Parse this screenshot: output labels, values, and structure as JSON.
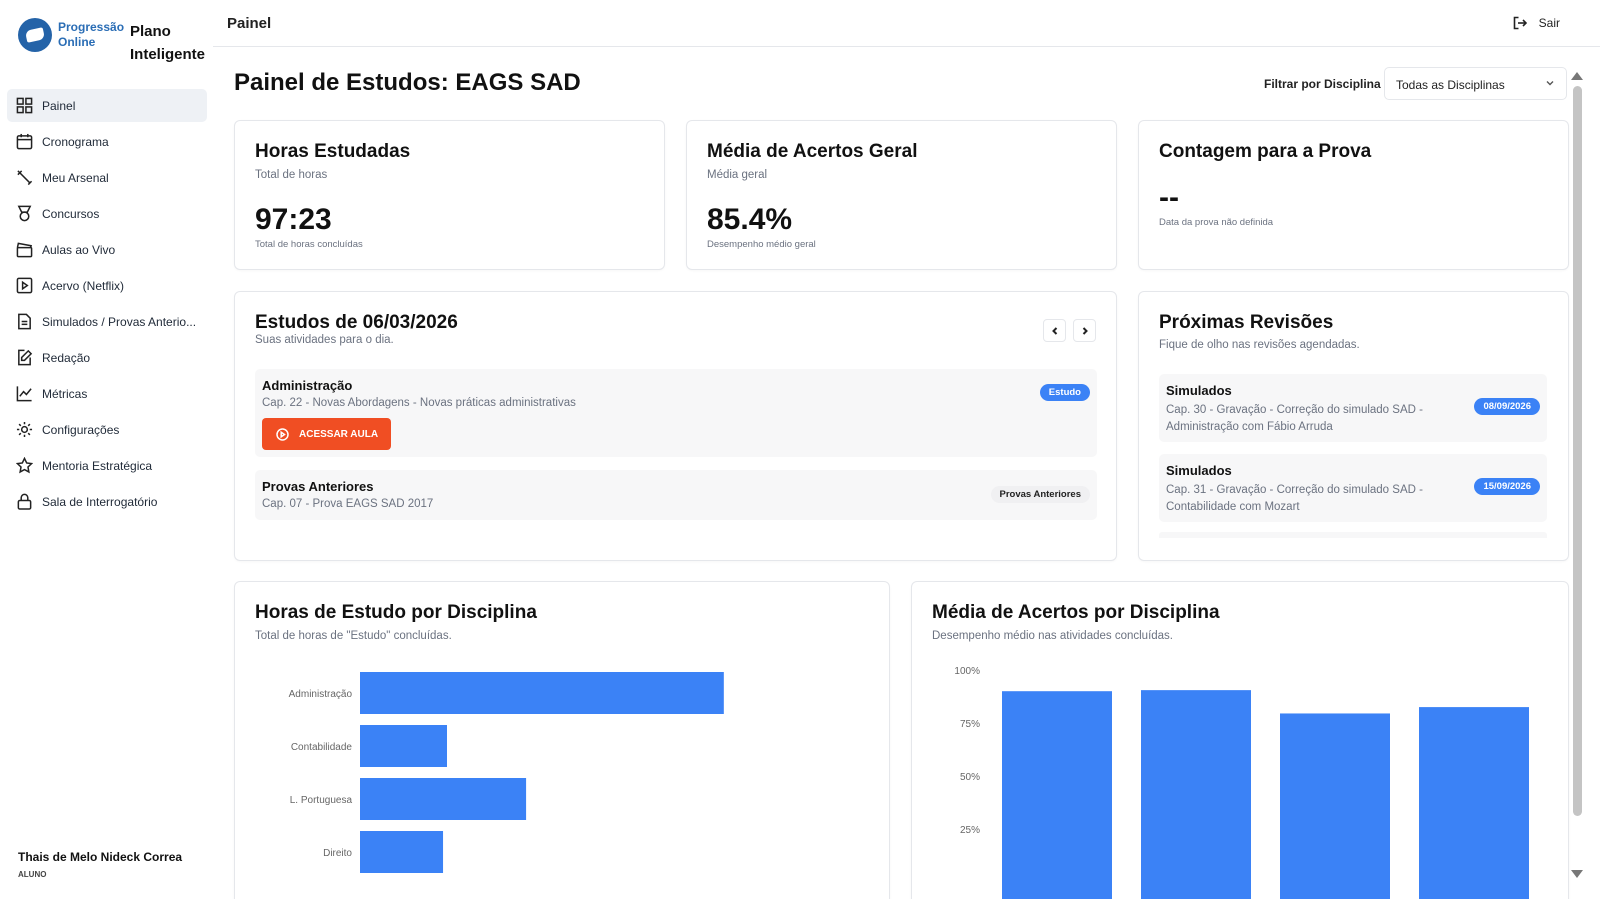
{
  "brand": {
    "logo_line1": "Progressão",
    "logo_line2": "Online",
    "title_line1": "Plano",
    "title_line2": "Inteligente"
  },
  "sidebar": {
    "items": [
      {
        "label": "Painel",
        "icon": "grid-icon"
      },
      {
        "label": "Cronograma",
        "icon": "calendar-icon"
      },
      {
        "label": "Meu Arsenal",
        "icon": "pen-tool-icon"
      },
      {
        "label": "Concursos",
        "icon": "medal-icon"
      },
      {
        "label": "Aulas ao Vivo",
        "icon": "clapperboard-icon"
      },
      {
        "label": "Acervo (Netflix)",
        "icon": "play-square-icon"
      },
      {
        "label": "Simulados / Provas Anterio...",
        "icon": "file-text-icon"
      },
      {
        "label": "Redação",
        "icon": "edit-icon"
      },
      {
        "label": "Métricas",
        "icon": "line-chart-icon"
      },
      {
        "label": "Configurações",
        "icon": "gear-icon"
      },
      {
        "label": "Mentoria Estratégica",
        "icon": "star-icon"
      },
      {
        "label": "Sala de Interrogatório",
        "icon": "lock-icon"
      }
    ],
    "active_index": 0
  },
  "user": {
    "name": "Thais de Melo Nideck Correa",
    "role": "ALUNO"
  },
  "header": {
    "title": "Painel",
    "logout_label": "Sair"
  },
  "main": {
    "title": "Painel de Estudos: EAGS SAD",
    "filter": {
      "label": "Filtrar por Disciplina",
      "selected": "Todas as Disciplinas"
    }
  },
  "stats": {
    "hours": {
      "title": "Horas Estudadas",
      "subtitle": "Total de horas",
      "value": "97:23",
      "caption": "Total de horas concluídas"
    },
    "accuracy": {
      "title": "Média de Acertos Geral",
      "subtitle": "Média geral",
      "value": "85.4%",
      "caption": "Desempenho médio geral"
    },
    "countdown": {
      "title": "Contagem para a Prova",
      "value": "--",
      "caption": "Data da prova não definida"
    }
  },
  "studies": {
    "title": "Estudos de 06/03/2026",
    "subtitle": "Suas atividades para o dia.",
    "items": [
      {
        "title": "Administração",
        "desc": "Cap. 22 - Novas Abordagens - Novas práticas administrativas",
        "badge": "Estudo",
        "button": "ACESSAR AULA"
      },
      {
        "title": "Provas Anteriores",
        "desc": "Cap. 07 - Prova EAGS SAD 2017",
        "badge": "Provas Anteriores"
      }
    ]
  },
  "reviews": {
    "title": "Próximas Revisões",
    "subtitle": "Fique de olho nas revisões agendadas.",
    "items": [
      {
        "title": "Simulados",
        "desc": "Cap. 30 - Gravação - Correção do simulado SAD - Administração com Fábio Arruda",
        "date": "08/09/2026"
      },
      {
        "title": "Simulados",
        "desc": "Cap. 31 - Gravação - Correção do simulado SAD - Contabilidade com Mozart",
        "date": "15/09/2026"
      }
    ]
  },
  "chart_data": [
    {
      "type": "bar",
      "orientation": "horizontal",
      "title": "Horas de Estudo por Disciplina",
      "subtitle": "Total de horas de \"Estudo\" concluídas.",
      "categories": [
        "Administração",
        "Contabilidade",
        "L. Portuguesa",
        "Direito"
      ],
      "values": [
        46,
        11,
        21,
        10.5
      ],
      "xlim": [
        0,
        55
      ],
      "color": "#3b82f6"
    },
    {
      "type": "bar",
      "title": "Média de Acertos por Disciplina",
      "subtitle": "Desempenho médio nas atividades concluídas.",
      "categories": [
        "",
        "",
        "",
        ""
      ],
      "values": [
        90,
        90.5,
        79.5,
        82.5
      ],
      "ylim": [
        0,
        100
      ],
      "yticks": [
        "100%",
        "75%",
        "50%",
        "25%"
      ],
      "color": "#3b82f6"
    }
  ]
}
